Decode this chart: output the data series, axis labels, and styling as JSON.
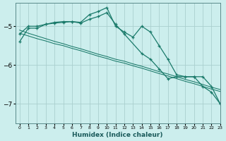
{
  "xlabel": "Humidex (Indice chaleur)",
  "background_color": "#cceeed",
  "grid_color": "#b0d8d8",
  "line_color": "#1a7a6a",
  "xlim": [
    -0.5,
    23
  ],
  "ylim": [
    -7.5,
    -4.4
  ],
  "yticks": [
    -7,
    -6,
    -5
  ],
  "xticks": [
    0,
    1,
    2,
    3,
    4,
    5,
    6,
    7,
    8,
    9,
    10,
    11,
    12,
    13,
    14,
    15,
    16,
    17,
    18,
    19,
    20,
    21,
    22,
    23
  ],
  "series": [
    {
      "x": [
        0,
        1,
        2,
        3,
        4,
        5,
        6,
        7,
        8,
        9,
        10,
        11,
        12,
        13,
        14,
        15,
        16,
        17,
        18,
        19,
        20,
        21,
        22,
        23
      ],
      "y": [
        -5.2,
        -5.0,
        -5.0,
        -4.95,
        -4.9,
        -4.88,
        -4.88,
        -4.9,
        -4.7,
        -4.62,
        -4.52,
        -5.0,
        -5.15,
        -5.28,
        -5.0,
        -5.15,
        -5.5,
        -5.85,
        -6.25,
        -6.3,
        -6.3,
        -6.3,
        -6.55,
        -7.0
      ],
      "marker": true
    },
    {
      "x": [
        0,
        1,
        2,
        3,
        4,
        5,
        6,
        7,
        8,
        9,
        10,
        11,
        12,
        14,
        15,
        16,
        17,
        18,
        19,
        20,
        21,
        22,
        23
      ],
      "y": [
        -5.4,
        -5.05,
        -5.05,
        -4.95,
        -4.92,
        -4.9,
        -4.88,
        -4.92,
        -4.82,
        -4.75,
        -4.65,
        -4.95,
        -5.2,
        -5.7,
        -5.85,
        -6.1,
        -6.35,
        -6.3,
        -6.3,
        -6.3,
        -6.55,
        -6.7,
        -7.0
      ],
      "marker": true
    },
    {
      "x": [
        0,
        1,
        2,
        3,
        4,
        5,
        6,
        7,
        8,
        9,
        10,
        11,
        12,
        13,
        14,
        15,
        16,
        17,
        18,
        19,
        20,
        21,
        22,
        23
      ],
      "y": [
        -5.1,
        -5.18,
        -5.25,
        -5.32,
        -5.39,
        -5.45,
        -5.52,
        -5.58,
        -5.65,
        -5.72,
        -5.78,
        -5.85,
        -5.9,
        -5.97,
        -6.03,
        -6.1,
        -6.17,
        -6.23,
        -6.3,
        -6.37,
        -6.43,
        -6.5,
        -6.57,
        -6.63
      ],
      "marker": false
    },
    {
      "x": [
        0,
        1,
        2,
        3,
        4,
        5,
        6,
        7,
        8,
        9,
        10,
        11,
        12,
        13,
        14,
        15,
        16,
        17,
        18,
        19,
        20,
        21,
        22,
        23
      ],
      "y": [
        -5.18,
        -5.25,
        -5.32,
        -5.38,
        -5.45,
        -5.5,
        -5.57,
        -5.63,
        -5.7,
        -5.77,
        -5.83,
        -5.9,
        -5.95,
        -6.02,
        -6.08,
        -6.15,
        -6.22,
        -6.28,
        -6.35,
        -6.42,
        -6.48,
        -6.55,
        -6.62,
        -6.68
      ],
      "marker": false
    }
  ]
}
